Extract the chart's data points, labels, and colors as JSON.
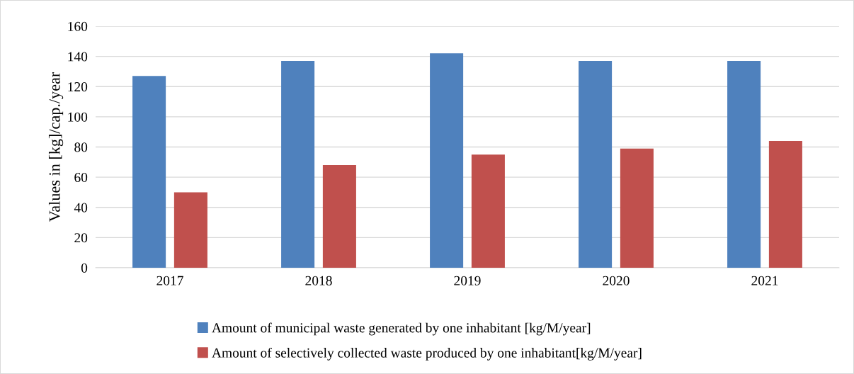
{
  "chart_data": {
    "type": "bar",
    "ylabel": "Values in [kg]/cap./year",
    "categories": [
      "2017",
      "2018",
      "2019",
      "2020",
      "2021"
    ],
    "series": [
      {
        "name": "Amount of municipal waste generated by one inhabitant [kg/M/year]",
        "color": "#4f81bd",
        "values": [
          127,
          137,
          142,
          137,
          137
        ]
      },
      {
        "name": "Amount of selectively collected waste produced by one inhabitant[kg/M/year]",
        "color": "#c0504d",
        "values": [
          50,
          68,
          75,
          79,
          84
        ]
      }
    ],
    "ylim": [
      0,
      160
    ],
    "yticks": [
      0,
      20,
      40,
      60,
      80,
      100,
      120,
      140,
      160
    ],
    "grid": "y",
    "legend": "bottom"
  }
}
